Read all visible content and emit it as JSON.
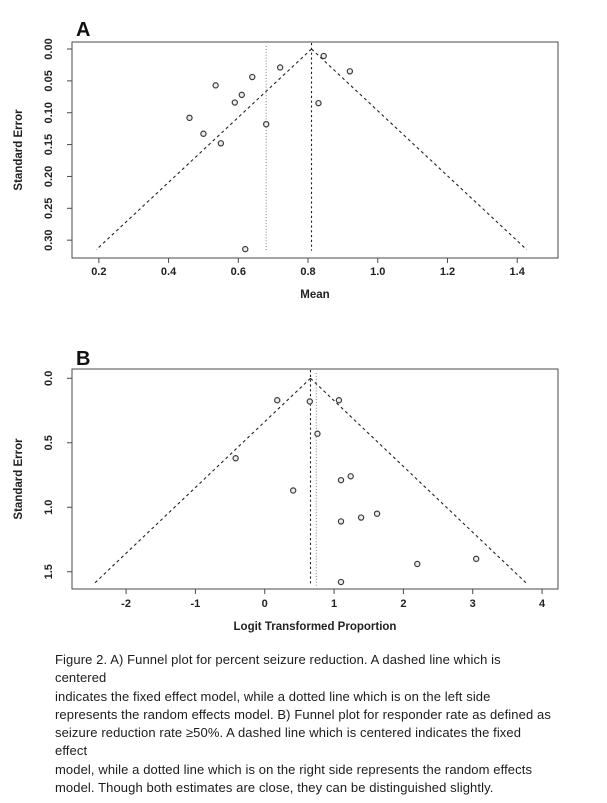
{
  "page": {
    "background": "#ffffff"
  },
  "colors": {
    "point_stroke": "#3c3c3c",
    "point_fill": "#ececec",
    "funnel_line": "#222222",
    "fixed_line": "#222222",
    "random_line": "#9a9a9a",
    "axis": "#4a4a4a",
    "text": "#1c1c1c"
  },
  "figure": {
    "caption": {
      "lines": [
        "Figure 2. A) Funnel plot for percent seizure reduction. A dashed line which is centered",
        "indicates the fixed effect model, while a dotted line which is on the left side",
        "represents the random effects model. B) Funnel plot for responder rate as defined as",
        "seizure reduction rate ≥50%. A dashed line which is centered indicates the fixed effect",
        "model, while a dotted line which is on the right side represents the random effects",
        "model. Though both estimates are close, they can be distinguished slightly."
      ]
    }
  },
  "chart_data": [
    {
      "type": "scatter",
      "subtype": "funnel-plot",
      "panel_label": "A",
      "title": "",
      "xlabel": "Mean",
      "ylabel": "Standard Error",
      "x_ticks": [
        0.2,
        0.4,
        0.6,
        0.8,
        1.0,
        1.2,
        1.4
      ],
      "x_tick_labels": [
        "0.2",
        "0.4",
        "0.6",
        "0.8",
        "1.0",
        "1.2",
        "1.4"
      ],
      "y_ticks": [
        0.0,
        0.05,
        0.1,
        0.15,
        0.2,
        0.25,
        0.3
      ],
      "y_tick_labels": [
        "0.00",
        "0.05",
        "0.10",
        "0.15",
        "0.20",
        "0.25",
        "0.30"
      ],
      "xlim": [
        0.123,
        1.517
      ],
      "ylim": [
        -0.011,
        0.328
      ],
      "y_axis_inverted_se": true,
      "grid": false,
      "legend": "none",
      "points": [
        [
          0.46,
          0.108
        ],
        [
          0.5,
          0.133
        ],
        [
          0.535,
          0.057
        ],
        [
          0.55,
          0.148
        ],
        [
          0.59,
          0.084
        ],
        [
          0.61,
          0.072
        ],
        [
          0.64,
          0.044
        ],
        [
          0.62,
          0.314
        ],
        [
          0.68,
          0.118
        ],
        [
          0.72,
          0.029
        ],
        [
          0.845,
          0.011
        ],
        [
          0.83,
          0.085
        ],
        [
          0.92,
          0.035
        ]
      ],
      "fixed_effect_mean": 0.81,
      "random_effect_mean": 0.68,
      "funnel_apex_se": 0.0,
      "funnel_max_se": 0.315,
      "ci_multiplier": 1.96,
      "line_styles": {
        "funnel": "dashed",
        "fixed_effect": "dashed",
        "random_effect": "dotted"
      }
    },
    {
      "type": "scatter",
      "subtype": "funnel-plot",
      "panel_label": "B",
      "title": "",
      "xlabel": "Logit Transformed Proportion",
      "ylabel": "Standard Error",
      "x_ticks": [
        -2,
        -1,
        0,
        1,
        2,
        3,
        4
      ],
      "x_tick_labels": [
        "-2",
        "-1",
        "0",
        "1",
        "2",
        "3",
        "4"
      ],
      "y_ticks": [
        0.0,
        0.5,
        1.0,
        1.5
      ],
      "y_tick_labels": [
        "0.0",
        "0.5",
        "1.0",
        "1.5"
      ],
      "xlim": [
        -2.78,
        4.23
      ],
      "ylim": [
        -0.072,
        1.634
      ],
      "y_axis_inverted_se": true,
      "grid": false,
      "legend": "none",
      "points": [
        [
          0.18,
          0.17
        ],
        [
          0.65,
          0.18
        ],
        [
          1.07,
          0.17
        ],
        [
          0.76,
          0.43
        ],
        [
          -0.42,
          0.62
        ],
        [
          0.41,
          0.87
        ],
        [
          1.1,
          0.79
        ],
        [
          1.24,
          0.76
        ],
        [
          1.1,
          1.11
        ],
        [
          1.39,
          1.08
        ],
        [
          1.62,
          1.05
        ],
        [
          2.2,
          1.44
        ],
        [
          3.05,
          1.4
        ],
        [
          1.1,
          1.58
        ]
      ],
      "fixed_effect_mean": 0.66,
      "random_effect_mean": 0.745,
      "funnel_apex_se": 0.0,
      "funnel_max_se": 1.6,
      "ci_multiplier": 1.96,
      "line_styles": {
        "funnel": "dashed",
        "fixed_effect": "dashed",
        "random_effect": "dotted"
      }
    }
  ]
}
